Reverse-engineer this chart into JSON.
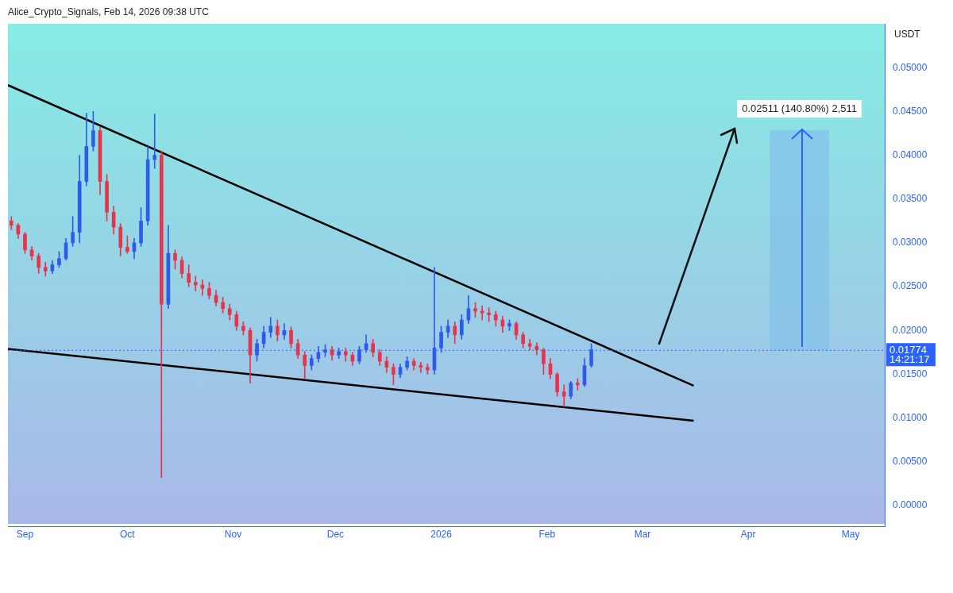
{
  "chart_data": {
    "type": "candlestick",
    "ylabel": "USDT",
    "annotations": [
      "Alice_Crypto_Signals, Feb 14, 2026 09:38 UTC",
      "14:21:17"
    ],
    "x": [
      "2025-08-28",
      "2025-08-30",
      "2025-09-01",
      "2025-09-03",
      "2025-09-05",
      "2025-09-07",
      "2025-09-09",
      "2025-09-11",
      "2025-09-13",
      "2025-09-15",
      "2025-09-17",
      "2025-09-19",
      "2025-09-21",
      "2025-09-23",
      "2025-09-25",
      "2025-09-27",
      "2025-09-29",
      "2025-10-01",
      "2025-10-03",
      "2025-10-05",
      "2025-10-07",
      "2025-10-09",
      "2025-10-11",
      "2025-10-13",
      "2025-10-15",
      "2025-10-17",
      "2025-10-19",
      "2025-10-21",
      "2025-10-23",
      "2025-10-25",
      "2025-10-27",
      "2025-10-29",
      "2025-10-31",
      "2025-11-02",
      "2025-11-04",
      "2025-11-06",
      "2025-11-08",
      "2025-11-10",
      "2025-11-12",
      "2025-11-14",
      "2025-11-16",
      "2025-11-18",
      "2025-11-20",
      "2025-11-22",
      "2025-11-24",
      "2025-11-26",
      "2025-11-28",
      "2025-11-30",
      "2025-12-02",
      "2025-12-04",
      "2025-12-06",
      "2025-12-08",
      "2025-12-10",
      "2025-12-12",
      "2025-12-14",
      "2025-12-16",
      "2025-12-18",
      "2025-12-20",
      "2025-12-22",
      "2025-12-24",
      "2025-12-26",
      "2025-12-28",
      "2025-12-30",
      "2026-01-01",
      "2026-01-03",
      "2026-01-05",
      "2026-01-07",
      "2026-01-09",
      "2026-01-11",
      "2026-01-13",
      "2026-01-15",
      "2026-01-17",
      "2026-01-19",
      "2026-01-21",
      "2026-01-23",
      "2026-01-25",
      "2026-01-27",
      "2026-01-29",
      "2026-01-31",
      "2026-02-02",
      "2026-02-04",
      "2026-02-06",
      "2026-02-08",
      "2026-02-10",
      "2026-02-12",
      "2026-02-14"
    ],
    "ohlc": [
      [
        0.0325,
        0.033,
        0.0315,
        0.032
      ],
      [
        0.032,
        0.0322,
        0.0305,
        0.031
      ],
      [
        0.031,
        0.0312,
        0.0288,
        0.0292
      ],
      [
        0.0292,
        0.0296,
        0.028,
        0.0285
      ],
      [
        0.0285,
        0.0288,
        0.0265,
        0.0272
      ],
      [
        0.0272,
        0.0278,
        0.0262,
        0.0268
      ],
      [
        0.0268,
        0.028,
        0.0265,
        0.0275
      ],
      [
        0.0275,
        0.029,
        0.0272,
        0.0282
      ],
      [
        0.0282,
        0.0305,
        0.028,
        0.03
      ],
      [
        0.03,
        0.033,
        0.0296,
        0.0312
      ],
      [
        0.0312,
        0.04,
        0.03,
        0.037
      ],
      [
        0.037,
        0.0448,
        0.0365,
        0.041
      ],
      [
        0.041,
        0.045,
        0.0405,
        0.0428
      ],
      [
        0.0428,
        0.0432,
        0.0355,
        0.037
      ],
      [
        0.037,
        0.0378,
        0.0325,
        0.0335
      ],
      [
        0.0335,
        0.0342,
        0.031,
        0.0318
      ],
      [
        0.0318,
        0.0322,
        0.0285,
        0.0295
      ],
      [
        0.0295,
        0.0308,
        0.0288,
        0.029
      ],
      [
        0.029,
        0.0305,
        0.0282,
        0.03
      ],
      [
        0.03,
        0.034,
        0.0296,
        0.0325
      ],
      [
        0.0325,
        0.041,
        0.032,
        0.0395
      ],
      [
        0.0395,
        0.0447,
        0.0385,
        0.04
      ],
      [
        0.04,
        0.0405,
        0.0032,
        0.023
      ],
      [
        0.023,
        0.032,
        0.0225,
        0.0288
      ],
      [
        0.0288,
        0.0292,
        0.027,
        0.028
      ],
      [
        0.028,
        0.0284,
        0.026,
        0.0265
      ],
      [
        0.0265,
        0.0275,
        0.025,
        0.0255
      ],
      [
        0.0255,
        0.0262,
        0.0245,
        0.0252
      ],
      [
        0.0252,
        0.0258,
        0.024,
        0.0248
      ],
      [
        0.0248,
        0.0255,
        0.0236,
        0.024
      ],
      [
        0.024,
        0.0246,
        0.0228,
        0.0232
      ],
      [
        0.0232,
        0.0238,
        0.022,
        0.0225
      ],
      [
        0.0225,
        0.023,
        0.0212,
        0.0218
      ],
      [
        0.0218,
        0.0222,
        0.02,
        0.0205
      ],
      [
        0.0205,
        0.021,
        0.0195,
        0.02
      ],
      [
        0.02,
        0.0203,
        0.014,
        0.0172
      ],
      [
        0.0172,
        0.019,
        0.0165,
        0.0185
      ],
      [
        0.0185,
        0.0205,
        0.018,
        0.0198
      ],
      [
        0.0198,
        0.0215,
        0.0192,
        0.0205
      ],
      [
        0.0205,
        0.0212,
        0.0188,
        0.0195
      ],
      [
        0.0195,
        0.0208,
        0.019,
        0.02
      ],
      [
        0.02,
        0.0204,
        0.018,
        0.0185
      ],
      [
        0.0185,
        0.019,
        0.0168,
        0.0172
      ],
      [
        0.0172,
        0.0176,
        0.0145,
        0.016
      ],
      [
        0.016,
        0.0172,
        0.0155,
        0.0168
      ],
      [
        0.0168,
        0.0182,
        0.0164,
        0.0175
      ],
      [
        0.0175,
        0.0184,
        0.017,
        0.0178
      ],
      [
        0.0178,
        0.0182,
        0.0166,
        0.0172
      ],
      [
        0.0172,
        0.018,
        0.0168,
        0.0176
      ],
      [
        0.0176,
        0.018,
        0.0165,
        0.0172
      ],
      [
        0.0172,
        0.0175,
        0.016,
        0.0165
      ],
      [
        0.0165,
        0.0182,
        0.0162,
        0.0178
      ],
      [
        0.0178,
        0.0195,
        0.0175,
        0.0185
      ],
      [
        0.0185,
        0.019,
        0.017,
        0.0175
      ],
      [
        0.0175,
        0.0178,
        0.016,
        0.0165
      ],
      [
        0.0165,
        0.017,
        0.0152,
        0.0158
      ],
      [
        0.0158,
        0.0162,
        0.0138,
        0.015
      ],
      [
        0.015,
        0.0162,
        0.0146,
        0.0158
      ],
      [
        0.0158,
        0.017,
        0.0155,
        0.0165
      ],
      [
        0.0165,
        0.0168,
        0.0155,
        0.016
      ],
      [
        0.016,
        0.0164,
        0.0152,
        0.0158
      ],
      [
        0.0158,
        0.0162,
        0.015,
        0.0155
      ],
      [
        0.0155,
        0.0272,
        0.015,
        0.018
      ],
      [
        0.018,
        0.0205,
        0.0175,
        0.0198
      ],
      [
        0.0198,
        0.0212,
        0.0192,
        0.0205
      ],
      [
        0.0205,
        0.021,
        0.0185,
        0.0195
      ],
      [
        0.0195,
        0.0218,
        0.019,
        0.0212
      ],
      [
        0.0212,
        0.024,
        0.0208,
        0.0225
      ],
      [
        0.0225,
        0.0232,
        0.0215,
        0.0222
      ],
      [
        0.0222,
        0.0228,
        0.0212,
        0.022
      ],
      [
        0.022,
        0.0226,
        0.021,
        0.0218
      ],
      [
        0.0218,
        0.0222,
        0.0205,
        0.0212
      ],
      [
        0.0212,
        0.0216,
        0.0198,
        0.0205
      ],
      [
        0.0205,
        0.0212,
        0.02,
        0.0208
      ],
      [
        0.0208,
        0.021,
        0.019,
        0.0195
      ],
      [
        0.0195,
        0.0198,
        0.018,
        0.0185
      ],
      [
        0.0185,
        0.019,
        0.0178,
        0.0182
      ],
      [
        0.0182,
        0.0186,
        0.0172,
        0.0178
      ],
      [
        0.0178,
        0.018,
        0.015,
        0.0162
      ],
      [
        0.0162,
        0.0168,
        0.0145,
        0.015
      ],
      [
        0.015,
        0.0152,
        0.0125,
        0.013
      ],
      [
        0.013,
        0.0138,
        0.0113,
        0.0125
      ],
      [
        0.0125,
        0.0142,
        0.0122,
        0.014
      ],
      [
        0.014,
        0.0145,
        0.0132,
        0.0138
      ],
      [
        0.0138,
        0.0168,
        0.0136,
        0.016
      ],
      [
        0.016,
        0.0185,
        0.0158,
        0.0178
      ]
    ],
    "series": [
      {
        "type": "line",
        "x": [
          "2025-08-27",
          "2026-03-16"
        ],
        "values": [
          0.048,
          0.0137
        ],
        "color": "#000000"
      },
      {
        "type": "line",
        "x": [
          "2025-08-27",
          "2026-03-16"
        ],
        "values": [
          0.0179,
          0.0097
        ],
        "color": "#000000"
      },
      {
        "type": "bar",
        "x": [
          "2026-04-16"
        ],
        "base": [
          0.01774
        ],
        "values": [
          0.02511
        ],
        "color": "#86c3ea",
        "value_labels": [
          "0.02511 (140.80%) 2,511"
        ]
      }
    ],
    "ref_lines": [
      {
        "axis": "y",
        "value": 0.01774,
        "label": "0.01774",
        "color": "#2962ff",
        "line_style": "dotted"
      }
    ],
    "xlim": [
      "2025-08-27",
      "2026-05-11"
    ],
    "xticks": [
      {
        "value": "2025-09-01",
        "label": "Sep"
      },
      {
        "value": "2025-10-01",
        "label": "Oct"
      },
      {
        "value": "2025-11-01",
        "label": "Nov"
      },
      {
        "value": "2025-12-01",
        "label": "Dec"
      },
      {
        "value": "2026-01-01",
        "label": "2026"
      },
      {
        "value": "2026-02-01",
        "label": "Feb"
      },
      {
        "value": "2026-03-01",
        "label": "Mar"
      },
      {
        "value": "2026-04-01",
        "label": "Apr"
      },
      {
        "value": "2026-05-01",
        "label": "May"
      }
    ],
    "ylim": [
      -0.0024,
      0.055
    ],
    "yticks": [
      {
        "value": 0,
        "label": "0.00000"
      },
      {
        "value": 0.005,
        "label": "0.00500"
      },
      {
        "value": 0.01,
        "label": "0.01000"
      },
      {
        "value": 0.015,
        "label": "0.01500"
      },
      {
        "value": 0.02,
        "label": "0.02000"
      },
      {
        "value": 0.025,
        "label": "0.02500"
      },
      {
        "value": 0.03,
        "label": "0.03000"
      },
      {
        "value": 0.035,
        "label": "0.03500"
      },
      {
        "value": 0.04,
        "label": "0.04000"
      },
      {
        "value": 0.045,
        "label": "0.04500"
      },
      {
        "value": 0.05,
        "label": "0.05000"
      }
    ]
  }
}
